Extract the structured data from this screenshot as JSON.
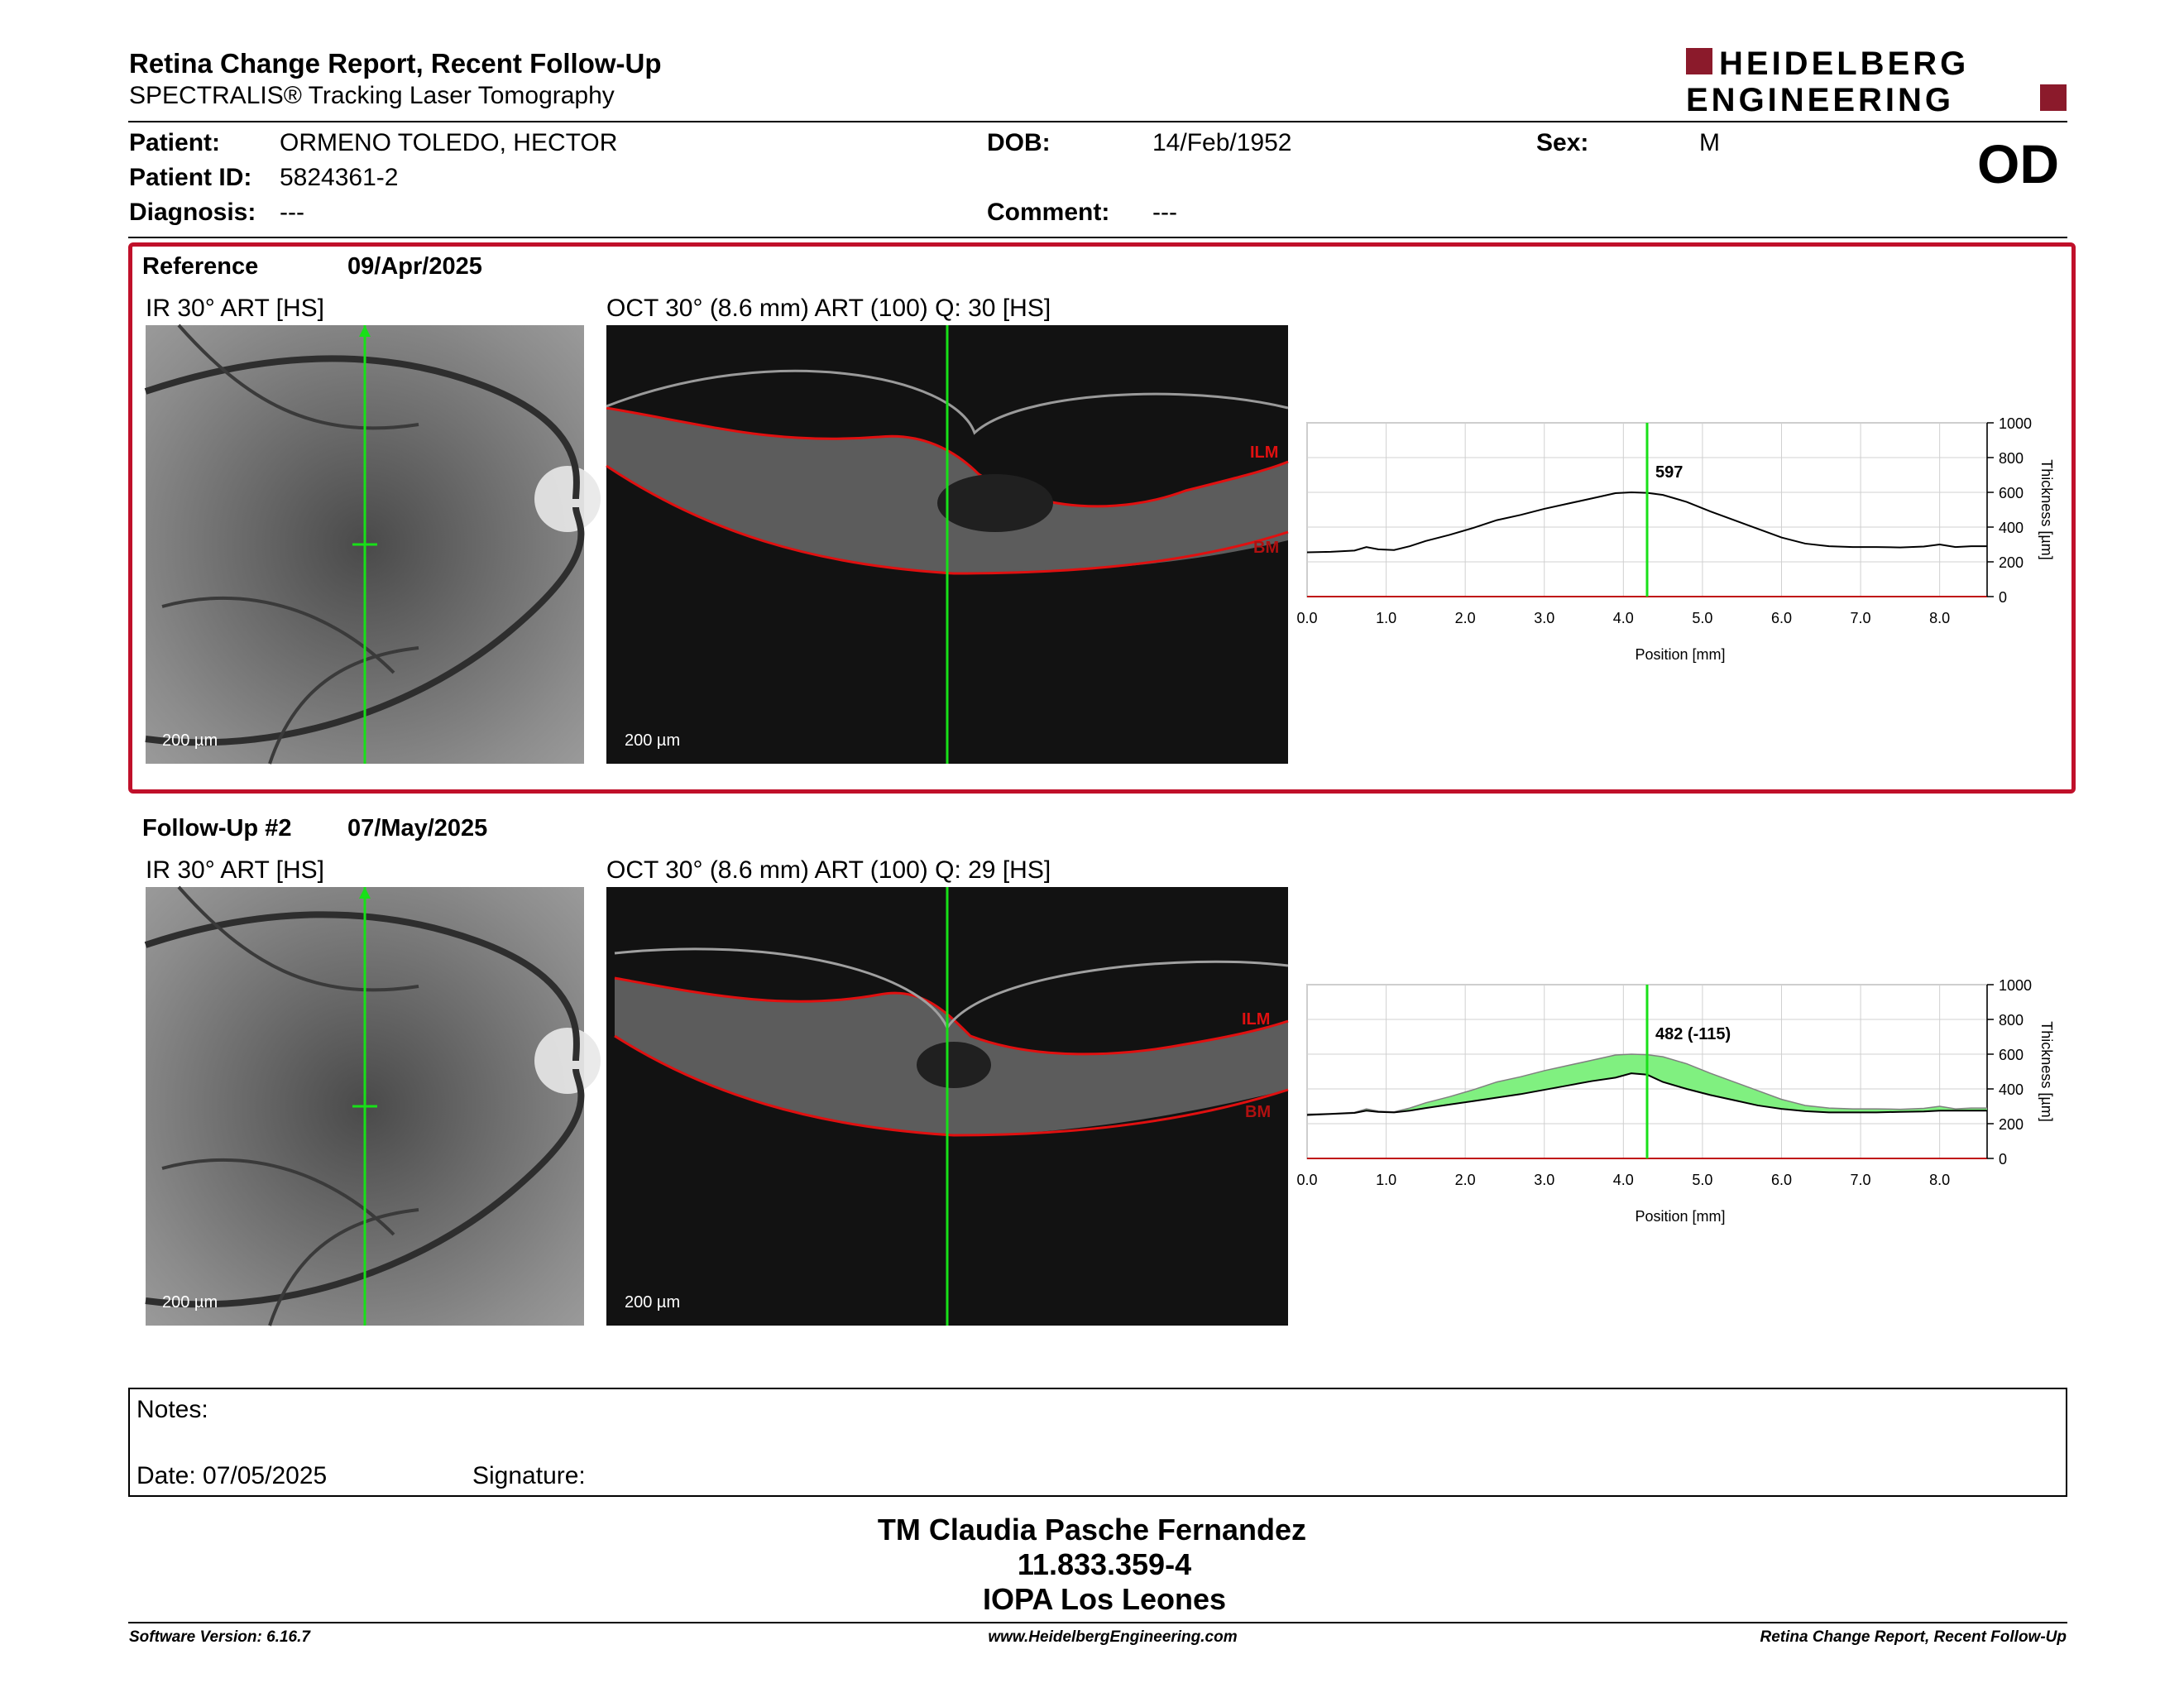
{
  "header": {
    "title": "Retina Change Report, Recent Follow-Up",
    "subtitle": "SPECTRALIS® Tracking Laser Tomography",
    "logo_line1": "HEIDELBERG",
    "logo_line2": "ENGINEERING",
    "logo_color": "#8b1a2b"
  },
  "patient": {
    "patient_label": "Patient:",
    "patient_value": "ORMENO TOLEDO, HECTOR",
    "id_label": "Patient ID:",
    "id_value": "5824361-2",
    "diagnosis_label": "Diagnosis:",
    "diagnosis_value": "---",
    "dob_label": "DOB:",
    "dob_value": "14/Feb/1952",
    "comment_label": "Comment:",
    "comment_value": "---",
    "sex_label": "Sex:",
    "sex_value": "M",
    "eye": "OD"
  },
  "reference": {
    "label": "Reference",
    "date": "09/Apr/2025",
    "ir_caption": "IR 30° ART [HS]",
    "oct_caption": "OCT 30° (8.6 mm) ART (100) Q: 30 [HS]",
    "scale_ir": "200 µm",
    "scale_oct": "200 µm",
    "ilm_label": "ILM",
    "bm_label": "BM"
  },
  "followup": {
    "label": "Follow-Up #2",
    "date": "07/May/2025",
    "ir_caption": "IR 30° ART [HS]",
    "oct_caption": "OCT 30° (8.6 mm) ART (100) Q: 29 [HS]",
    "scale_ir": "200 µm",
    "scale_oct": "200 µm",
    "ilm_label": "ILM",
    "bm_label": "BM"
  },
  "chart_data": [
    {
      "type": "line",
      "xlabel": "Position [mm]",
      "ylabel": "Thickness [µm]",
      "xlim": [
        0,
        8.6
      ],
      "ylim": [
        0,
        1000
      ],
      "x_ticks": [
        "0.0",
        "1.0",
        "2.0",
        "3.0",
        "4.0",
        "5.0",
        "6.0",
        "7.0",
        "8.0"
      ],
      "y_ticks": [
        "0",
        "200",
        "400",
        "600",
        "800",
        "1000"
      ],
      "cursor_x": 4.3,
      "cursor_label": "597",
      "series": [
        {
          "x": [
            0.0,
            0.3,
            0.6,
            0.75,
            0.9,
            1.1,
            1.3,
            1.5,
            1.8,
            2.1,
            2.4,
            2.7,
            3.0,
            3.3,
            3.6,
            3.9,
            4.1,
            4.3,
            4.5,
            4.8,
            5.1,
            5.4,
            5.7,
            6.0,
            6.3,
            6.6,
            6.9,
            7.2,
            7.5,
            7.8,
            8.0,
            8.2,
            8.4,
            8.6
          ],
          "y": [
            255,
            258,
            265,
            285,
            272,
            268,
            290,
            320,
            355,
            395,
            440,
            470,
            505,
            535,
            565,
            595,
            600,
            597,
            585,
            545,
            490,
            440,
            390,
            340,
            305,
            290,
            285,
            285,
            283,
            288,
            300,
            285,
            290,
            290
          ]
        }
      ]
    },
    {
      "type": "area",
      "xlabel": "Position [mm]",
      "ylabel": "Thickness [µm]",
      "xlim": [
        0,
        8.6
      ],
      "ylim": [
        0,
        1000
      ],
      "x_ticks": [
        "0.0",
        "1.0",
        "2.0",
        "3.0",
        "4.0",
        "5.0",
        "6.0",
        "7.0",
        "8.0"
      ],
      "y_ticks": [
        "0",
        "200",
        "400",
        "600",
        "800",
        "1000"
      ],
      "cursor_x": 4.3,
      "cursor_label": "482 (-115)",
      "fill_color": "#80f080",
      "series": [
        {
          "x": [
            0.0,
            0.3,
            0.6,
            0.75,
            0.9,
            1.1,
            1.3,
            1.5,
            1.8,
            2.1,
            2.4,
            2.7,
            3.0,
            3.3,
            3.6,
            3.9,
            4.1,
            4.3,
            4.5,
            4.8,
            5.1,
            5.4,
            5.7,
            6.0,
            6.3,
            6.6,
            6.9,
            7.2,
            7.5,
            7.8,
            8.0,
            8.2,
            8.4,
            8.6
          ],
          "y": [
            255,
            258,
            265,
            285,
            272,
            268,
            290,
            320,
            355,
            395,
            440,
            470,
            505,
            535,
            565,
            595,
            600,
            597,
            585,
            545,
            490,
            440,
            390,
            340,
            305,
            290,
            285,
            285,
            283,
            288,
            300,
            285,
            290,
            290
          ]
        },
        {
          "x": [
            0.0,
            0.3,
            0.6,
            0.75,
            0.9,
            1.1,
            1.3,
            1.5,
            1.8,
            2.1,
            2.4,
            2.7,
            3.0,
            3.3,
            3.6,
            3.9,
            4.1,
            4.3,
            4.5,
            4.8,
            5.1,
            5.4,
            5.7,
            6.0,
            6.3,
            6.6,
            6.9,
            7.2,
            7.5,
            7.8,
            8.0,
            8.2,
            8.4,
            8.6
          ],
          "y": [
            250,
            256,
            262,
            275,
            268,
            265,
            275,
            290,
            310,
            330,
            350,
            370,
            395,
            420,
            445,
            465,
            490,
            482,
            440,
            400,
            365,
            335,
            305,
            285,
            272,
            265,
            265,
            265,
            268,
            270,
            275,
            275,
            275,
            275
          ]
        }
      ]
    }
  ],
  "notes": {
    "notes_label": "Notes:",
    "date_label": "Date: 07/05/2025",
    "signature_label": "Signature:"
  },
  "signature": {
    "name": "TM Claudia Pasche Fernandez",
    "id": "11.833.359-4",
    "org": "IOPA Los Leones"
  },
  "footer": {
    "software": "Software Version: 6.16.7",
    "website": "www.HeidelbergEngineering.com",
    "report": "Retina Change Report, Recent Follow-Up"
  }
}
